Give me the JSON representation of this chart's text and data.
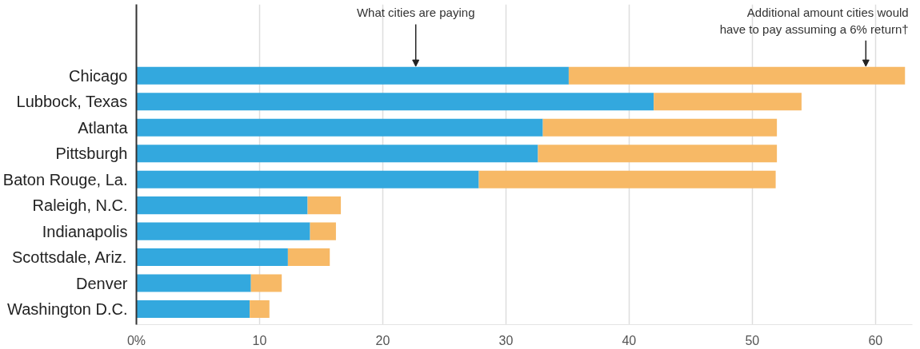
{
  "chart_data": {
    "type": "bar",
    "orientation": "horizontal",
    "stacked": true,
    "categories": [
      "Chicago",
      "Lubbock, Texas",
      "Atlanta",
      "Pittsburgh",
      "Baton Rouge, La.",
      "Raleigh, N.C.",
      "Indianapolis",
      "Scottsdale, Ariz.",
      "Denver",
      "Washington D.C."
    ],
    "series": [
      {
        "name": "What cities are paying",
        "color": "#33a8de",
        "values": [
          35.1,
          42.0,
          33.0,
          32.6,
          27.8,
          13.9,
          14.1,
          12.3,
          9.3,
          9.2
        ]
      },
      {
        "name": "Additional amount cities would\nhave to pay assuming a 6% return†",
        "color": "#f7b966",
        "values": [
          27.3,
          12.0,
          19.0,
          19.4,
          24.1,
          2.7,
          2.1,
          3.4,
          2.5,
          1.6
        ]
      }
    ],
    "xlim": [
      0,
      63
    ],
    "xticks": [
      {
        "value": 0,
        "label": "0%"
      },
      10,
      20,
      30,
      40,
      50,
      60
    ],
    "grid": "x"
  }
}
